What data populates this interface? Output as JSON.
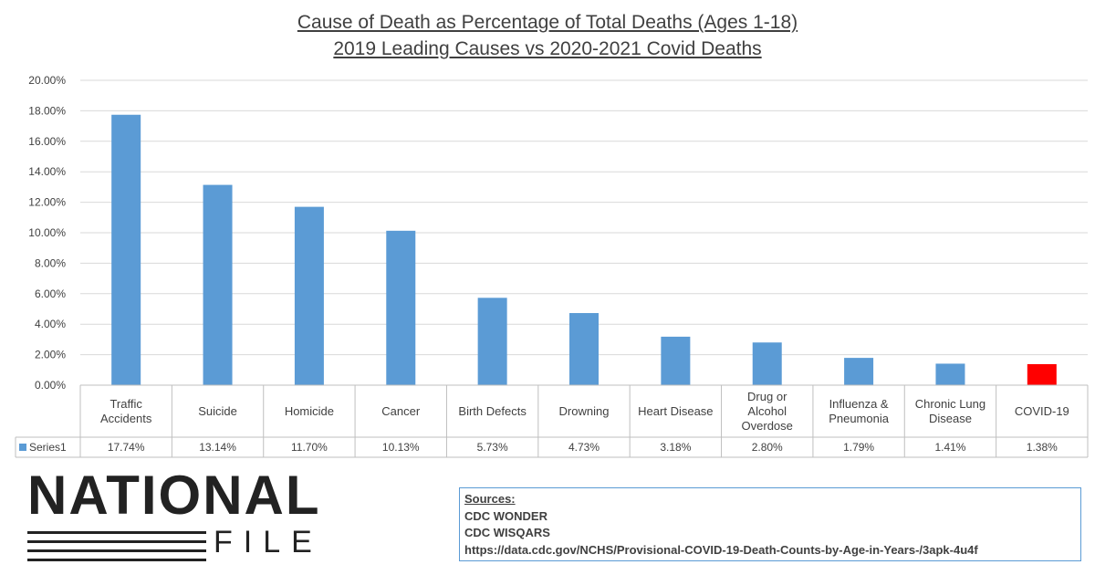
{
  "chart_data": {
    "type": "bar",
    "title": "Cause of Death as Percentage of Total Deaths (Ages 1-18)",
    "subtitle": "2019 Leading Causes vs 2020-2021 Covid Deaths",
    "categories": [
      [
        "Traffic",
        "Accidents"
      ],
      [
        "Suicide"
      ],
      [
        "Homicide"
      ],
      [
        "Cancer"
      ],
      [
        "Birth Defects"
      ],
      [
        "Drowning"
      ],
      [
        "Heart Disease"
      ],
      [
        "Drug or",
        "Alcohol",
        "Overdose"
      ],
      [
        "Influenza &",
        "Pneumonia"
      ],
      [
        "Chronic Lung",
        "Disease"
      ],
      [
        "COVID-19"
      ]
    ],
    "series": [
      {
        "name": "Series1",
        "values": [
          17.74,
          13.14,
          11.7,
          10.13,
          5.73,
          4.73,
          3.18,
          2.8,
          1.79,
          1.41,
          1.38
        ],
        "labels": [
          "17.74%",
          "13.14%",
          "11.70%",
          "10.13%",
          "5.73%",
          "4.73%",
          "3.18%",
          "2.80%",
          "1.79%",
          "1.41%",
          "1.38%"
        ]
      }
    ],
    "ylim": [
      0,
      20
    ],
    "yticks": [
      "0.00%",
      "2.00%",
      "4.00%",
      "6.00%",
      "8.00%",
      "10.00%",
      "12.00%",
      "14.00%",
      "16.00%",
      "18.00%",
      "20.00%"
    ],
    "grid": true,
    "legend": "data table",
    "colors": {
      "default": "#5b9bd5",
      "highlight": "#ff0000",
      "highlight_index": 10
    }
  },
  "logo": {
    "line1": "NATIONAL",
    "line2": "FILE"
  },
  "sources": {
    "heading": "Sources:",
    "lines": [
      "CDC WONDER",
      "CDC WISQARS",
      "https://data.cdc.gov/NCHS/Provisional-COVID-19-Death-Counts-by-Age-in-Years-/3apk-4u4f"
    ]
  }
}
